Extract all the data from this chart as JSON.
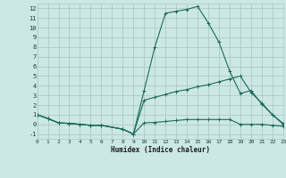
{
  "background_color": "#cce8e4",
  "grid_color": "#b0c8c4",
  "line_color": "#1a6b5a",
  "xlabel": "Humidex (Indice chaleur)",
  "xlim": [
    0,
    23
  ],
  "ylim": [
    -1.5,
    12.5
  ],
  "xticks": [
    0,
    1,
    2,
    3,
    4,
    5,
    6,
    7,
    8,
    9,
    10,
    11,
    12,
    13,
    14,
    15,
    16,
    17,
    18,
    19,
    20,
    21,
    22,
    23
  ],
  "yticks": [
    -1,
    0,
    1,
    2,
    3,
    4,
    5,
    6,
    7,
    8,
    9,
    10,
    11,
    12
  ],
  "series1_x": [
    0,
    1,
    2,
    3,
    4,
    5,
    6,
    8,
    9,
    10,
    11,
    12,
    13,
    14,
    15,
    16,
    17,
    18,
    19,
    20,
    21,
    22,
    23
  ],
  "series1_y": [
    1.0,
    0.6,
    0.15,
    0.1,
    0.0,
    -0.1,
    -0.1,
    -0.5,
    -1.0,
    3.5,
    8.0,
    11.5,
    11.7,
    11.9,
    12.2,
    10.5,
    8.5,
    5.5,
    3.2,
    3.5,
    2.1,
    1.0,
    0.1
  ],
  "series2_x": [
    0,
    1,
    2,
    3,
    4,
    5,
    6,
    8,
    9,
    10,
    11,
    12,
    13,
    14,
    15,
    16,
    17,
    18,
    19,
    20,
    21,
    22,
    23
  ],
  "series2_y": [
    1.0,
    0.6,
    0.15,
    0.1,
    0.0,
    -0.1,
    -0.1,
    -0.5,
    -1.0,
    2.5,
    2.8,
    3.1,
    3.4,
    3.6,
    3.9,
    4.1,
    4.4,
    4.7,
    5.0,
    3.3,
    2.2,
    1.0,
    0.0
  ],
  "series3_x": [
    0,
    1,
    2,
    3,
    4,
    5,
    6,
    8,
    9,
    10,
    11,
    12,
    13,
    14,
    15,
    16,
    17,
    18,
    19,
    20,
    21,
    22,
    23
  ],
  "series3_y": [
    1.0,
    0.6,
    0.15,
    0.1,
    0.0,
    -0.1,
    -0.1,
    -0.5,
    -1.0,
    0.15,
    0.2,
    0.3,
    0.4,
    0.5,
    0.5,
    0.5,
    0.5,
    0.5,
    0.0,
    0.0,
    0.0,
    -0.1,
    -0.2
  ]
}
